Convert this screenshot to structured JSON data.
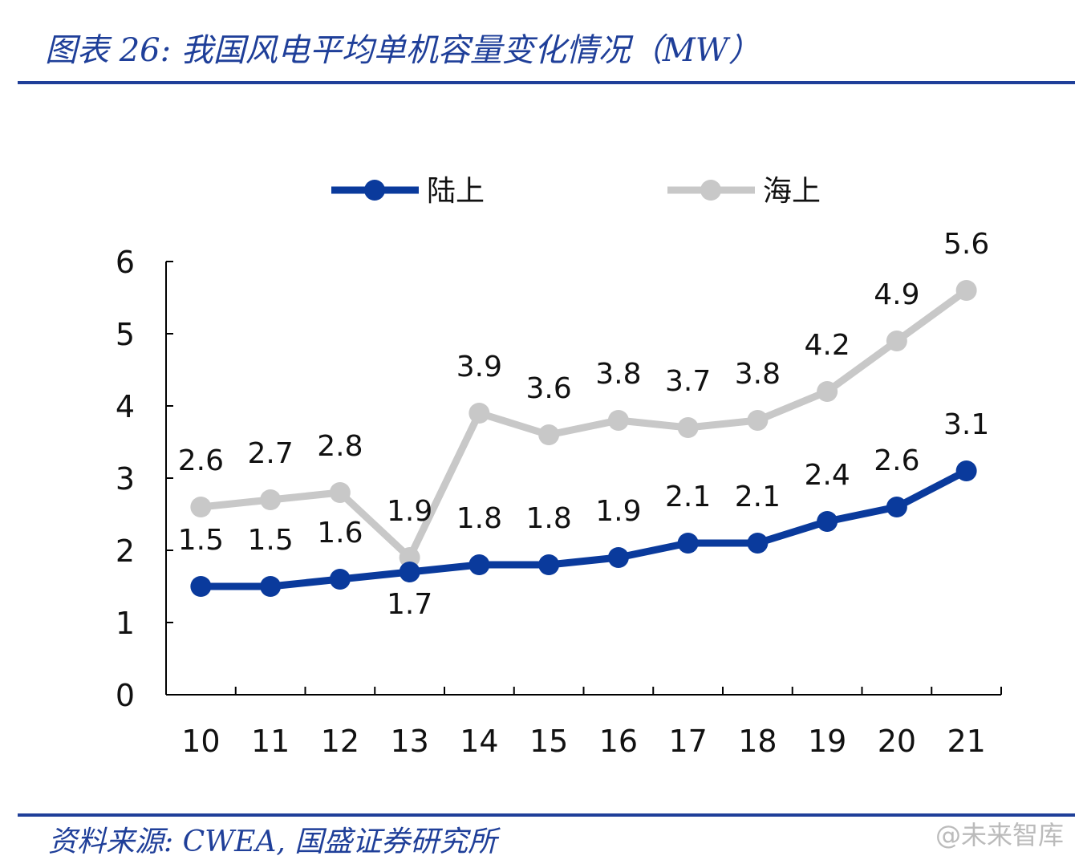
{
  "title": "图表 26:  我国风电平均单机容量变化情况（MW）",
  "source": "资料来源:  CWEA, 国盛证券研究所",
  "watermark": "@未来智库",
  "chart_data": {
    "type": "line",
    "title": "图表 26:  我国风电平均单机容量变化情况（MW）",
    "categories": [
      "10",
      "11",
      "12",
      "13",
      "14",
      "15",
      "16",
      "17",
      "18",
      "19",
      "20",
      "21"
    ],
    "ylim": [
      0,
      6
    ],
    "yticks": [
      0,
      1,
      2,
      3,
      4,
      5,
      6
    ],
    "grid": false,
    "legend": "top",
    "series": [
      {
        "name": "陆上",
        "color": "#0a3a9c",
        "values": [
          1.5,
          1.5,
          1.6,
          1.7,
          1.8,
          1.8,
          1.9,
          2.1,
          2.1,
          2.4,
          2.6,
          3.1
        ]
      },
      {
        "name": "海上",
        "color": "#c8c8c8",
        "values": [
          2.6,
          2.7,
          2.8,
          1.9,
          3.9,
          3.6,
          3.8,
          3.7,
          3.8,
          4.2,
          4.9,
          5.6
        ]
      }
    ]
  }
}
